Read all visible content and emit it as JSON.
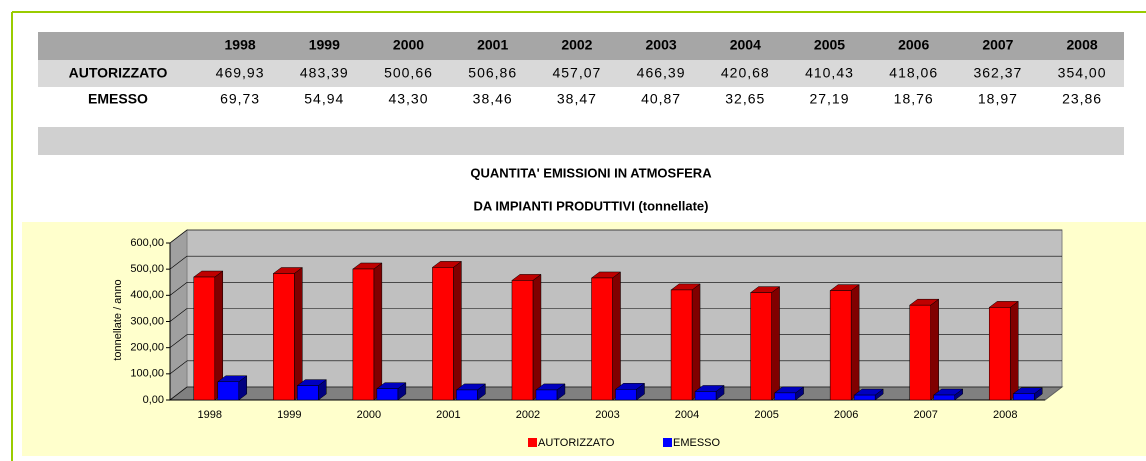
{
  "table": {
    "header": [
      "1998",
      "1999",
      "2000",
      "2001",
      "2002",
      "2003",
      "2004",
      "2005",
      "2006",
      "2007",
      "2008"
    ],
    "rows": [
      {
        "label": "AUTORIZZATO",
        "values": [
          "469,93",
          "483,39",
          "500,66",
          "506,86",
          "457,07",
          "466,39",
          "420,68",
          "410,43",
          "418,06",
          "362,37",
          "354,00"
        ]
      },
      {
        "label": "EMESSO",
        "values": [
          "69,73",
          "54,94",
          "43,30",
          "38,46",
          "38,47",
          "40,87",
          "32,65",
          "27,19",
          "18,76",
          "18,97",
          "23,86"
        ]
      }
    ]
  },
  "chart_data": {
    "type": "bar3d",
    "title": [
      "QUANTITA' EMISSIONI IN ATMOSFERA",
      "DA IMPIANTI PRODUTTIVI (tonnellate)"
    ],
    "ylabel": "tonnellate / anno",
    "categories": [
      "1998",
      "1999",
      "2000",
      "2001",
      "2002",
      "2003",
      "2004",
      "2005",
      "2006",
      "2007",
      "2008"
    ],
    "series": [
      {
        "name": "AUTORIZZATO",
        "color": "#ff0000",
        "values": [
          469.93,
          483.39,
          500.66,
          506.86,
          457.07,
          466.39,
          420.68,
          410.43,
          418.06,
          362.37,
          354.0
        ]
      },
      {
        "name": "EMESSO",
        "color": "#0000ff",
        "values": [
          69.73,
          54.94,
          43.3,
          38.46,
          38.47,
          40.87,
          32.65,
          27.19,
          18.76,
          18.97,
          23.86
        ]
      }
    ],
    "ylim": [
      0,
      600
    ],
    "yticks": [
      {
        "value": 0,
        "label": "0,00"
      },
      {
        "value": 100,
        "label": "100,00"
      },
      {
        "value": 200,
        "label": "200,00"
      },
      {
        "value": 300,
        "label": "300,00"
      },
      {
        "value": 400,
        "label": "400,00"
      },
      {
        "value": 500,
        "label": "500,00"
      },
      {
        "value": 600,
        "label": "600,00"
      }
    ],
    "grid": true,
    "legend": "bottom"
  }
}
